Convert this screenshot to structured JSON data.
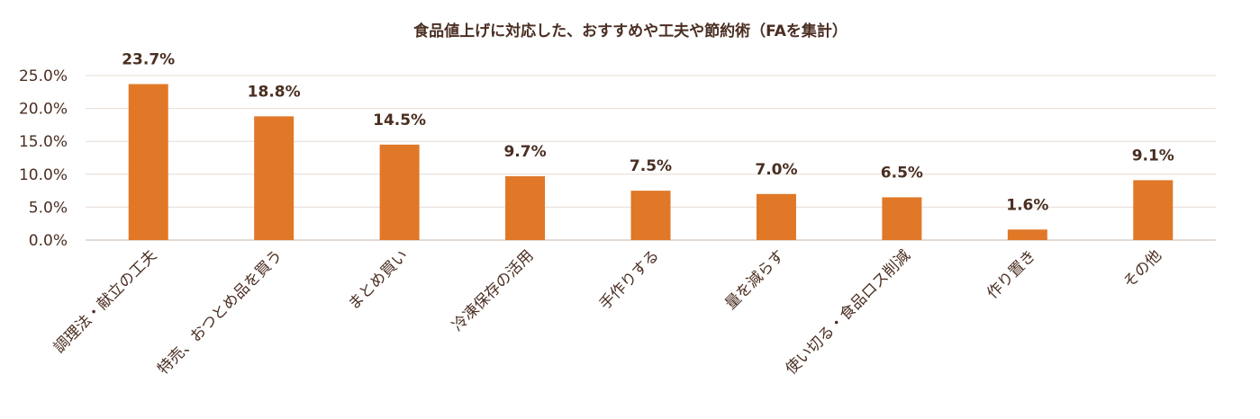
{
  "chart_data": {
    "type": "bar",
    "title": "食品値上げに対応した、おすすめや工夫や節約術（FAを集計）",
    "categories": [
      "調理法・献立の工夫",
      "特売、おつとめ品を買う",
      "まとめ買い",
      "冷凍保存の活用",
      "手作りする",
      "量を減らす",
      "使い切る・食品ロス削減",
      "作り置き",
      "その他"
    ],
    "values": [
      23.7,
      18.8,
      14.5,
      9.7,
      7.5,
      7.0,
      6.5,
      1.6,
      9.1
    ],
    "data_labels": [
      "23.7%",
      "18.8%",
      "14.5%",
      "9.7%",
      "7.5%",
      "7.0%",
      "6.5%",
      "1.6%",
      "9.1%"
    ],
    "yticks": [
      "0.0%",
      "5.0%",
      "10.0%",
      "15.0%",
      "20.0%",
      "25.0%"
    ],
    "ylim": [
      0,
      25
    ],
    "grid": true,
    "bar_color": "#e07828"
  }
}
